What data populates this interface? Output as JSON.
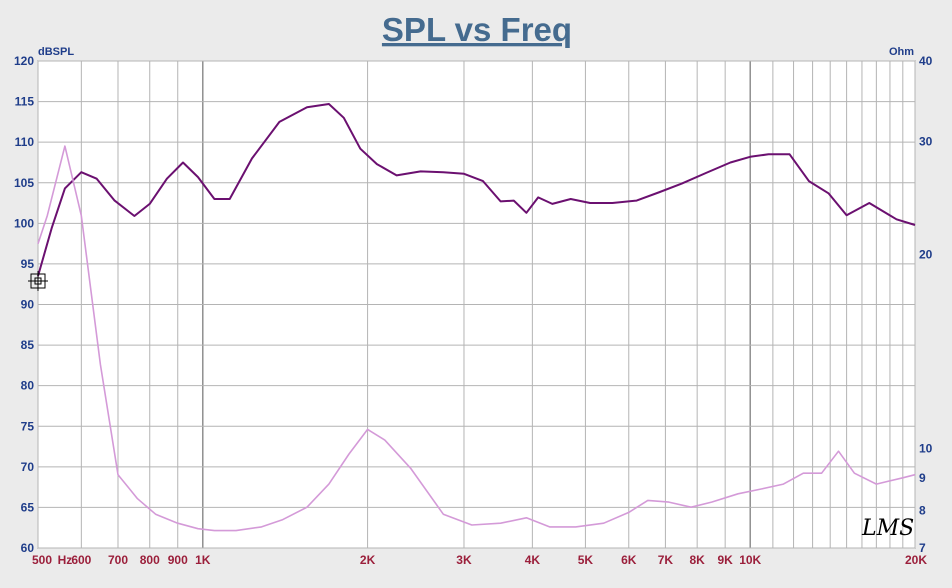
{
  "chart_data": {
    "type": "line",
    "title": "SPL vs Freq",
    "ylabel_left": "dBSPL",
    "ylabel_right": "Ohm",
    "xscale": "log",
    "xlim": [
      500,
      20000
    ],
    "ylim_left": [
      60,
      120
    ],
    "ylim_right": [
      7,
      40
    ],
    "grid": true,
    "x_ticks": [
      {
        "value": 500,
        "label": "500"
      },
      {
        "value": 560,
        "label": "Hz"
      },
      {
        "value": 600,
        "label": "600"
      },
      {
        "value": 700,
        "label": "700"
      },
      {
        "value": 800,
        "label": "800"
      },
      {
        "value": 900,
        "label": "900"
      },
      {
        "value": 1000,
        "label": "1K"
      },
      {
        "value": 2000,
        "label": "2K"
      },
      {
        "value": 3000,
        "label": "3K"
      },
      {
        "value": 4000,
        "label": "4K"
      },
      {
        "value": 5000,
        "label": "5K"
      },
      {
        "value": 6000,
        "label": "6K"
      },
      {
        "value": 7000,
        "label": "7K"
      },
      {
        "value": 8000,
        "label": "8K"
      },
      {
        "value": 9000,
        "label": "9K"
      },
      {
        "value": 10000,
        "label": "10K"
      },
      {
        "value": 20000,
        "label": "20K"
      }
    ],
    "y_ticks_left": [
      "60",
      "65",
      "70",
      "75",
      "80",
      "85",
      "90",
      "95",
      "100",
      "105",
      "110",
      "115",
      "120"
    ],
    "y_ticks_right": [
      {
        "value": 7,
        "label": "7"
      },
      {
        "value": 8,
        "label": "8"
      },
      {
        "value": 9,
        "label": "9"
      },
      {
        "value": 10,
        "label": "10"
      },
      {
        "value": 20,
        "label": "20"
      },
      {
        "value": 30,
        "label": "30"
      },
      {
        "value": 40,
        "label": "40"
      }
    ],
    "series": [
      {
        "axis": "left",
        "color": "#6b1070",
        "x": [
          500,
          530,
          560,
          600,
          640,
          690,
          750,
          800,
          860,
          920,
          980,
          1050,
          1120,
          1230,
          1380,
          1550,
          1700,
          1810,
          1940,
          2080,
          2260,
          2500,
          2750,
          3000,
          3250,
          3500,
          3700,
          3900,
          4100,
          4350,
          4700,
          5100,
          5600,
          6200,
          6800,
          7500,
          8300,
          9200,
          10000,
          10800,
          11800,
          12800,
          13900,
          15000,
          16500,
          18500,
          20000
        ],
        "values": [
          93.5,
          99.5,
          104.3,
          106.3,
          105.5,
          102.8,
          100.9,
          102.4,
          105.5,
          107.5,
          105.7,
          103.0,
          103.0,
          108.0,
          112.5,
          114.3,
          114.7,
          113.0,
          109.2,
          107.3,
          105.9,
          106.4,
          106.3,
          106.1,
          105.2,
          102.7,
          102.8,
          101.3,
          103.2,
          102.4,
          103.0,
          102.5,
          102.5,
          102.8,
          103.8,
          104.9,
          106.2,
          107.5,
          108.2,
          108.5,
          108.5,
          105.2,
          103.7,
          101.0,
          102.5,
          100.5,
          99.8
        ]
      },
      {
        "axis": "right",
        "color": "#d49ad8",
        "x": [
          500,
          520,
          560,
          600,
          650,
          700,
          760,
          820,
          900,
          980,
          1050,
          1150,
          1280,
          1400,
          1550,
          1700,
          1850,
          2000,
          2150,
          2400,
          2750,
          3100,
          3500,
          3900,
          4300,
          4800,
          5400,
          6000,
          6500,
          7100,
          7800,
          8500,
          9500,
          10500,
          11500,
          12500,
          13500,
          14500,
          15500,
          17000,
          19000,
          20000
        ],
        "values": [
          20.8,
          23.0,
          29.5,
          23.0,
          13.5,
          9.1,
          8.35,
          7.9,
          7.65,
          7.5,
          7.45,
          7.45,
          7.55,
          7.75,
          8.1,
          8.8,
          9.8,
          10.7,
          10.3,
          9.3,
          7.9,
          7.6,
          7.65,
          7.8,
          7.55,
          7.55,
          7.65,
          7.95,
          8.3,
          8.25,
          8.1,
          8.25,
          8.5,
          8.65,
          8.8,
          9.15,
          9.15,
          9.9,
          9.15,
          8.8,
          9.0,
          9.1
        ]
      }
    ],
    "logo": "LMS"
  },
  "marker_icon": "crosshair-cursor-icon"
}
